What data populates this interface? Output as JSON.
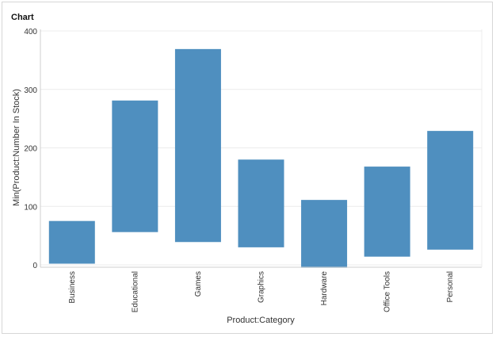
{
  "chart_data": {
    "type": "bar",
    "title": "Chart",
    "xlabel": "Product:Category",
    "ylabel": "Min(Product:Number In Stock)",
    "ylim": [
      0,
      400
    ],
    "yticks": [
      0,
      100,
      200,
      300,
      400
    ],
    "grid": true,
    "categories": [
      "Business",
      "Educational",
      "Games",
      "Graphics",
      "Hardware",
      "Office Tools",
      "Personal"
    ],
    "series": [
      {
        "low": [
          2,
          56,
          39,
          30,
          -5,
          14,
          26
        ],
        "high": [
          75,
          281,
          369,
          180,
          111,
          168,
          229
        ]
      }
    ],
    "colors": {
      "bar": "#4f8fbf",
      "grid": "#ececec",
      "axis": "#cfcfcf"
    }
  }
}
